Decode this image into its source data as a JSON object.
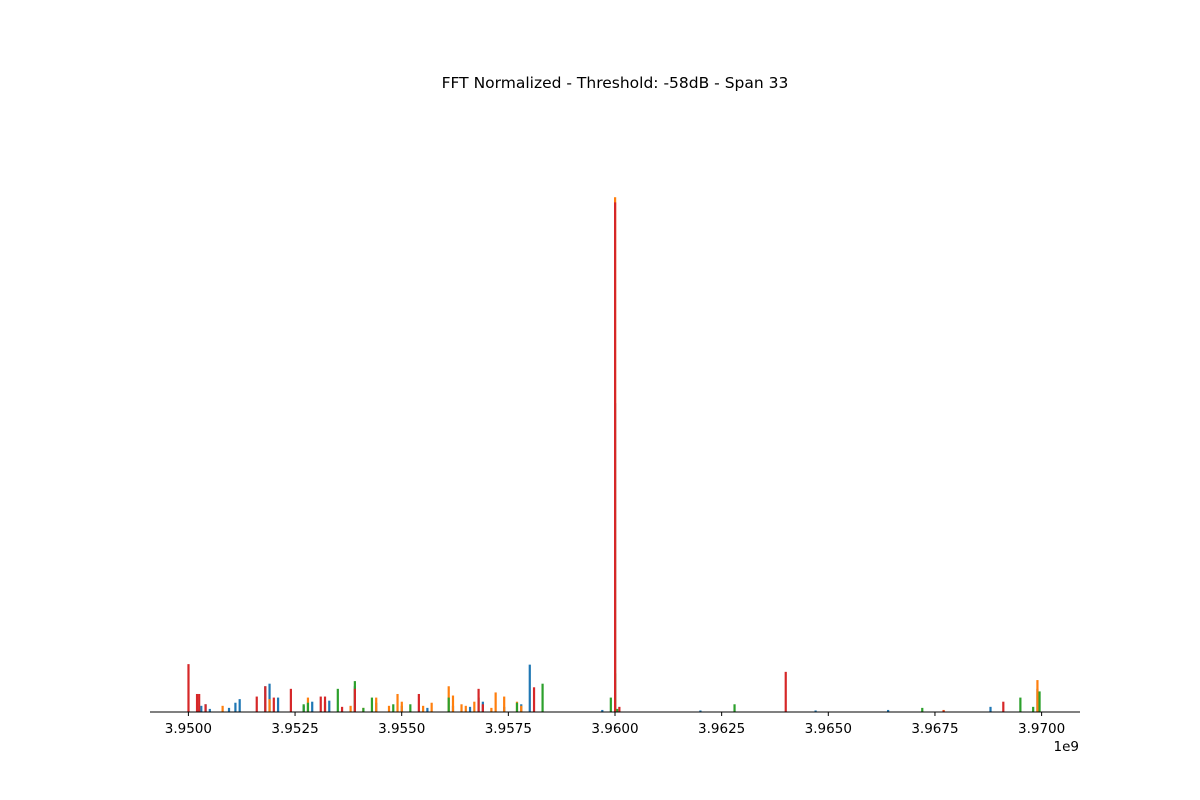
{
  "chart_data": {
    "type": "bar",
    "title": "FFT Normalized - Threshold: -58dB - Span 33",
    "xlabel": "",
    "ylabel": "",
    "x_offset_label": "1e9",
    "xlim": [
      3949100000.0,
      3970900000.0
    ],
    "ylim": [
      0,
      1.15
    ],
    "x_ticks": [
      3950000000.0,
      3952500000.0,
      3955000000.0,
      3957500000.0,
      3960000000.0,
      3962500000.0,
      3965000000.0,
      3967500000.0,
      3970000000.0
    ],
    "x_tick_labels": [
      "3.9500",
      "3.9525",
      "3.9550",
      "3.9575",
      "3.9600",
      "3.9625",
      "3.9650",
      "3.9675",
      "3.9700"
    ],
    "y_ticks_visible": false,
    "grid": false,
    "colors": {
      "blue": "#1f77b4",
      "orange": "#ff7f0e",
      "green": "#2ca02c",
      "red": "#d62728"
    },
    "series": [
      {
        "color": "#1f77b4",
        "points": [
          [
            3950250000.0,
            0.005
          ],
          [
            3950300000.0,
            0.012
          ],
          [
            3950400000.0,
            0.015
          ],
          [
            3950500000.0,
            0.006
          ],
          [
            3950950000.0,
            0.008
          ],
          [
            3951100000.0,
            0.018
          ],
          [
            3951200000.0,
            0.025
          ],
          [
            3951800000.0,
            0.05
          ],
          [
            3951900000.0,
            0.055
          ],
          [
            3952100000.0,
            0.028
          ],
          [
            3952700000.0,
            0.012
          ],
          [
            3952900000.0,
            0.02
          ],
          [
            3953300000.0,
            0.022
          ],
          [
            3953900000.0,
            0.05
          ],
          [
            3954400000.0,
            0.018
          ],
          [
            3955000000.0,
            0.012
          ],
          [
            3955600000.0,
            0.008
          ],
          [
            3956200000.0,
            0.012
          ],
          [
            3956600000.0,
            0.01
          ],
          [
            3956900000.0,
            0.02
          ],
          [
            3957400000.0,
            0.01
          ],
          [
            3957800000.0,
            0.015
          ],
          [
            3958000000.0,
            0.092
          ],
          [
            3959700000.0,
            0.004
          ],
          [
            3960000000.0,
            0.6
          ],
          [
            3962000000.0,
            0.003
          ],
          [
            3964700000.0,
            0.003
          ],
          [
            3966400000.0,
            0.004
          ],
          [
            3968800000.0,
            0.01
          ],
          [
            3969900000.0,
            0.045
          ]
        ]
      },
      {
        "color": "#ff7f0e",
        "points": [
          [
            3950800000.0,
            0.012
          ],
          [
            3951900000.0,
            0.025
          ],
          [
            3952800000.0,
            0.028
          ],
          [
            3953200000.0,
            0.02
          ],
          [
            3953800000.0,
            0.012
          ],
          [
            3954100000.0,
            0.008
          ],
          [
            3954400000.0,
            0.028
          ],
          [
            3954700000.0,
            0.012
          ],
          [
            3954900000.0,
            0.035
          ],
          [
            3955000000.0,
            0.02
          ],
          [
            3955500000.0,
            0.012
          ],
          [
            3955700000.0,
            0.018
          ],
          [
            3956100000.0,
            0.05
          ],
          [
            3956200000.0,
            0.032
          ],
          [
            3956400000.0,
            0.015
          ],
          [
            3956500000.0,
            0.012
          ],
          [
            3956700000.0,
            0.02
          ],
          [
            3957100000.0,
            0.008
          ],
          [
            3957200000.0,
            0.038
          ],
          [
            3957400000.0,
            0.03
          ],
          [
            3957700000.0,
            0.02
          ],
          [
            3957800000.0,
            0.012
          ],
          [
            3960000000.0,
            1.0
          ],
          [
            3967700000.0,
            0.004
          ],
          [
            3969900000.0,
            0.062
          ]
        ]
      },
      {
        "color": "#2ca02c",
        "points": [
          [
            3952700000.0,
            0.015
          ],
          [
            3952800000.0,
            0.018
          ],
          [
            3953500000.0,
            0.045
          ],
          [
            3953900000.0,
            0.06
          ],
          [
            3954100000.0,
            0.008
          ],
          [
            3954300000.0,
            0.028
          ],
          [
            3954800000.0,
            0.015
          ],
          [
            3955200000.0,
            0.015
          ],
          [
            3956100000.0,
            0.028
          ],
          [
            3956800000.0,
            0.028
          ],
          [
            3957700000.0,
            0.018
          ],
          [
            3958300000.0,
            0.055
          ],
          [
            3959900000.0,
            0.028
          ],
          [
            3960000000.0,
            0.075
          ],
          [
            3960050000.0,
            0.006
          ],
          [
            3962800000.0,
            0.015
          ],
          [
            3967200000.0,
            0.008
          ],
          [
            3969500000.0,
            0.028
          ],
          [
            3969800000.0,
            0.01
          ],
          [
            3969950000.0,
            0.04
          ]
        ]
      },
      {
        "color": "#d62728",
        "points": [
          [
            3950000000.0,
            0.093
          ],
          [
            3950200000.0,
            0.035
          ],
          [
            3950250000.0,
            0.035
          ],
          [
            3950400000.0,
            0.015
          ],
          [
            3951600000.0,
            0.03
          ],
          [
            3951800000.0,
            0.05
          ],
          [
            3952000000.0,
            0.028
          ],
          [
            3952400000.0,
            0.045
          ],
          [
            3953100000.0,
            0.03
          ],
          [
            3953200000.0,
            0.03
          ],
          [
            3953600000.0,
            0.01
          ],
          [
            3953900000.0,
            0.045
          ],
          [
            3955400000.0,
            0.035
          ],
          [
            3956800000.0,
            0.045
          ],
          [
            3956900000.0,
            0.015
          ],
          [
            3958100000.0,
            0.048
          ],
          [
            3960000000.0,
            0.99
          ],
          [
            3960100000.0,
            0.01
          ],
          [
            3964000000.0,
            0.078
          ],
          [
            3967700000.0,
            0.003
          ],
          [
            3969100000.0,
            0.02
          ]
        ]
      }
    ]
  }
}
